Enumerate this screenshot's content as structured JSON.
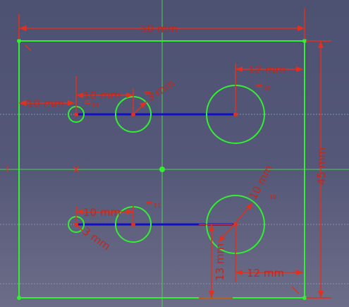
{
  "window": {
    "title": ""
  },
  "colors": {
    "background_top": "#4d5172",
    "background_bottom": "#6c6d88",
    "geometry": "#33ee33",
    "construction_line": "#1010c8",
    "dimension": "#e0301e",
    "axis": "#33ee33",
    "grid": "#8a8fb0"
  },
  "dimensions": {
    "width_50": "50 mm",
    "height_45": "45 mm",
    "right_top_12": "12 mm",
    "left_top_10": "10 mm",
    "hole_spacing_top_10": "10 mm",
    "small_radius_top": "3 mm",
    "left_bottom_10": "10 mm",
    "small_radius_bottom": "3 mm",
    "big_radius_bottom": "10 mm",
    "big_radius_sub": "10",
    "bottom_13": "13 mm",
    "right_bottom_12": "12 mm"
  },
  "constraints": {
    "eq_top_left": "=",
    "eq_top_left_sub": "14",
    "eq_top_mid": "=",
    "eq_top_mid_sub": "12",
    "eq_top_right": "=",
    "eq_top_right_sub": "10",
    "eq_bottom_mid": "=",
    "eq_bottom_mid_sub": "11"
  }
}
